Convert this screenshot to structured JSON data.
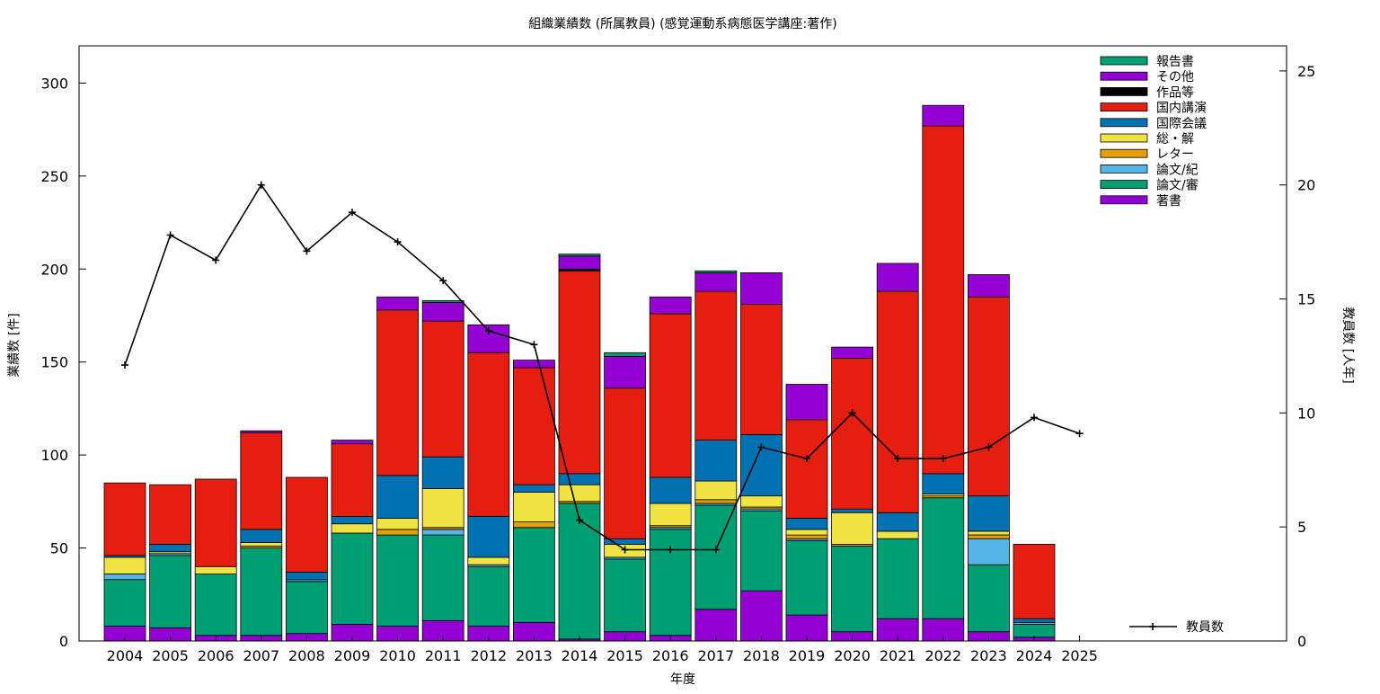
{
  "chart_data": {
    "type": "bar",
    "stacked": true,
    "title": "組織業績数 (所属教員) (感覚運動系病態医学講座:著作)",
    "xlabel": "年度",
    "ylabel": "業績数 [件]",
    "y2label": "教員数 [人年]",
    "ylim": [
      0,
      320
    ],
    "y2lim": [
      0,
      26.1
    ],
    "yticks": [
      0,
      50,
      100,
      150,
      200,
      250,
      300
    ],
    "y2ticks": [
      0,
      5,
      10,
      15,
      20,
      25
    ],
    "categories": [
      "2004",
      "2005",
      "2006",
      "2007",
      "2008",
      "2009",
      "2010",
      "2011",
      "2012",
      "2013",
      "2014",
      "2015",
      "2016",
      "2017",
      "2018",
      "2019",
      "2020",
      "2021",
      "2022",
      "2023",
      "2024",
      "2025"
    ],
    "legend_position": "top-right",
    "series": [
      {
        "name": "著書",
        "color": "#9400d3",
        "values": [
          8,
          7,
          3,
          3,
          4,
          9,
          8,
          11,
          8,
          10,
          1,
          5,
          3,
          17,
          27,
          14,
          5,
          12,
          12,
          5,
          2,
          0
        ]
      },
      {
        "name": "論文/審",
        "color": "#009e73",
        "values": [
          25,
          39,
          33,
          47,
          28,
          49,
          49,
          46,
          32,
          51,
          73,
          39,
          57,
          56,
          43,
          40,
          46,
          43,
          65,
          36,
          7,
          0
        ]
      },
      {
        "name": "論文/紀",
        "color": "#56b4e9",
        "values": [
          3,
          1,
          0,
          0,
          1,
          0,
          0,
          3,
          1,
          0,
          0,
          1,
          1,
          1,
          1,
          1,
          0,
          0,
          0,
          14,
          1,
          0
        ]
      },
      {
        "name": "レター",
        "color": "#e69f00",
        "values": [
          0,
          0,
          0,
          1,
          0,
          0,
          3,
          1,
          0,
          3,
          1,
          0,
          1,
          2,
          1,
          2,
          1,
          0,
          1,
          2,
          0,
          0
        ]
      },
      {
        "name": "総・解",
        "color": "#f0e442",
        "values": [
          9,
          1,
          4,
          2,
          0,
          5,
          6,
          21,
          4,
          16,
          9,
          7,
          12,
          10,
          6,
          3,
          17,
          4,
          1,
          2,
          0,
          0
        ]
      },
      {
        "name": "国際会議",
        "color": "#0072b2",
        "values": [
          1,
          4,
          0,
          7,
          4,
          4,
          23,
          17,
          22,
          4,
          6,
          3,
          14,
          22,
          33,
          6,
          2,
          10,
          11,
          19,
          2,
          0
        ]
      },
      {
        "name": "国内講演",
        "color": "#e51e10",
        "values": [
          39,
          32,
          47,
          52,
          51,
          39,
          89,
          73,
          88,
          63,
          109,
          81,
          88,
          80,
          70,
          53,
          81,
          119,
          187,
          107,
          40,
          0
        ]
      },
      {
        "name": "作品等",
        "color": "#000000",
        "values": [
          0,
          0,
          0,
          0,
          0,
          0,
          0,
          0,
          0,
          0,
          1,
          0,
          0,
          0,
          0,
          0,
          0,
          0,
          0,
          0,
          0,
          0
        ]
      },
      {
        "name": "その他",
        "color": "#9400d3",
        "values": [
          0,
          0,
          0,
          1,
          0,
          2,
          7,
          10,
          15,
          4,
          7,
          17,
          9,
          10,
          17,
          19,
          6,
          15,
          11,
          12,
          0,
          0
        ]
      },
      {
        "name": "報告書",
        "color": "#009e73",
        "values": [
          0,
          0,
          0,
          0,
          0,
          0,
          0,
          1,
          0,
          0,
          1,
          2,
          0,
          1,
          0,
          0,
          0,
          0,
          0,
          0,
          0,
          0
        ]
      }
    ],
    "line_series": {
      "name": "教員数",
      "color": "#000000",
      "axis": "y2",
      "values": [
        12.1,
        17.8,
        16.7,
        20.0,
        17.1,
        18.8,
        17.5,
        15.8,
        13.6,
        13.0,
        5.3,
        4.0,
        4.0,
        4.0,
        8.5,
        8.0,
        10.0,
        8.0,
        8.0,
        8.5,
        9.8,
        9.1
      ]
    }
  }
}
